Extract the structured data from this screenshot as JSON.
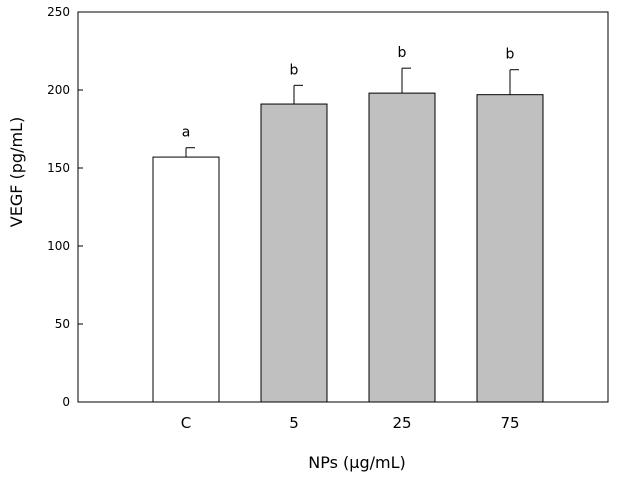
{
  "chart_data": {
    "type": "bar",
    "title": "",
    "xlabel": "NPs (µg/mL)",
    "ylabel": "VEGF (pg/mL)",
    "categories": [
      "C",
      "5",
      "25",
      "75"
    ],
    "values": [
      157,
      191,
      198,
      197
    ],
    "error_upper": [
      6,
      12,
      16,
      16
    ],
    "significance_letters": [
      "a",
      "b",
      "b",
      "b"
    ],
    "bar_colors": [
      "#ffffff",
      "#c0c0c0",
      "#c0c0c0",
      "#c0c0c0"
    ],
    "ylim": [
      0,
      250
    ],
    "yticks": [
      "0",
      "50",
      "100",
      "150",
      "200",
      "250"
    ],
    "grid": false,
    "legend": "none"
  }
}
